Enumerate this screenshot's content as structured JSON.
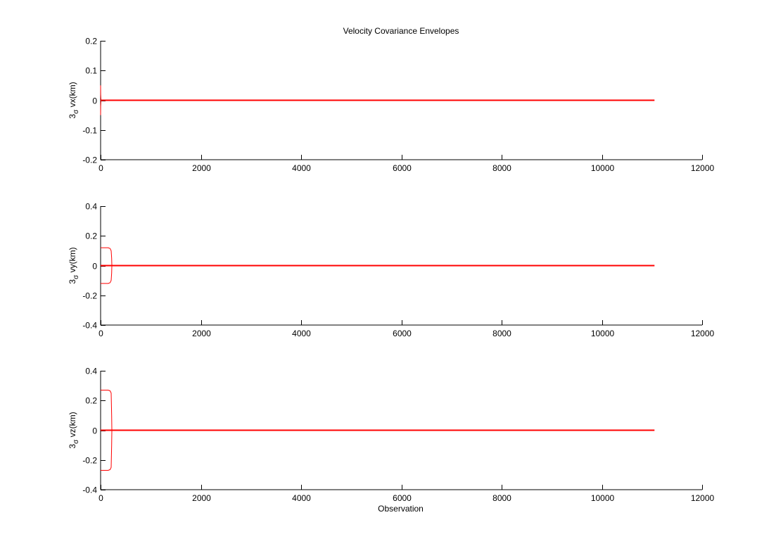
{
  "figure": {
    "title": "Velocity Covariance Envelopes"
  },
  "colors": {
    "series": "#ff0000",
    "axes": "#000000",
    "background": "#ffffff"
  },
  "chart_data": [
    {
      "type": "line",
      "title": "Velocity Covariance Envelopes",
      "xlabel": "",
      "ylabel": "3σ vx(km)",
      "ylabel_parts": {
        "prefix": "3",
        "sub": "σ",
        "rest": " vx(km)"
      },
      "xlim": [
        0,
        12000
      ],
      "ylim": [
        -0.2,
        0.2
      ],
      "xticks": [
        0,
        2000,
        4000,
        6000,
        8000,
        10000,
        12000
      ],
      "xtick_labels": [
        "0",
        "2000",
        "4000",
        "6000",
        "8000",
        "10000",
        "12000"
      ],
      "yticks": [
        -0.2,
        -0.1,
        0,
        0.1,
        0.2
      ],
      "ytick_labels": [
        "-0.2",
        "-0.1",
        "0",
        "0.1",
        "0.2"
      ],
      "grid": false,
      "series": [
        {
          "x": [
            0,
            11050
          ],
          "y": [
            0,
            0
          ]
        },
        {
          "x": [
            0,
            2,
            5,
            10,
            25
          ],
          "y": [
            0.05,
            0.02,
            0.005,
            0.001,
            0
          ]
        },
        {
          "x": [
            0,
            2,
            5,
            10,
            25
          ],
          "y": [
            -0.05,
            -0.02,
            -0.005,
            -0.001,
            0
          ]
        }
      ]
    },
    {
      "type": "line",
      "xlabel": "",
      "ylabel": "3σ vy(km)",
      "ylabel_parts": {
        "prefix": "3",
        "sub": "σ",
        "rest": " vy(km)"
      },
      "xlim": [
        0,
        12000
      ],
      "ylim": [
        -0.4,
        0.4
      ],
      "xticks": [
        0,
        2000,
        4000,
        6000,
        8000,
        10000,
        12000
      ],
      "xtick_labels": [
        "0",
        "2000",
        "4000",
        "6000",
        "8000",
        "10000",
        "12000"
      ],
      "yticks": [
        -0.4,
        -0.2,
        0,
        0.2,
        0.4
      ],
      "ytick_labels": [
        "-0.4",
        "-0.2",
        "0",
        "0.2",
        "0.4"
      ],
      "grid": false,
      "series": [
        {
          "x": [
            0,
            11050
          ],
          "y": [
            0,
            0
          ]
        },
        {
          "x": [
            0,
            150,
            190,
            210,
            220,
            225
          ],
          "y": [
            0.12,
            0.12,
            0.115,
            0.1,
            0.05,
            0
          ]
        },
        {
          "x": [
            0,
            150,
            190,
            210,
            220,
            225
          ],
          "y": [
            -0.12,
            -0.12,
            -0.115,
            -0.1,
            -0.05,
            0
          ]
        }
      ]
    },
    {
      "type": "line",
      "xlabel": "Observation",
      "ylabel": "3σ vz(km)",
      "ylabel_parts": {
        "prefix": "3",
        "sub": "σ",
        "rest": " vz(km)"
      },
      "xlim": [
        0,
        12000
      ],
      "ylim": [
        -0.4,
        0.4
      ],
      "xticks": [
        0,
        2000,
        4000,
        6000,
        8000,
        10000,
        12000
      ],
      "xtick_labels": [
        "0",
        "2000",
        "4000",
        "6000",
        "8000",
        "10000",
        "12000"
      ],
      "yticks": [
        -0.4,
        -0.2,
        0,
        0.2,
        0.4
      ],
      "ytick_labels": [
        "-0.4",
        "-0.2",
        "0",
        "0.2",
        "0.4"
      ],
      "grid": false,
      "series": [
        {
          "x": [
            0,
            11050
          ],
          "y": [
            0,
            0
          ]
        },
        {
          "x": [
            0,
            150,
            190,
            210,
            220,
            225
          ],
          "y": [
            0.27,
            0.27,
            0.265,
            0.25,
            0.1,
            0
          ]
        },
        {
          "x": [
            0,
            150,
            190,
            210,
            220,
            225
          ],
          "y": [
            -0.27,
            -0.27,
            -0.265,
            -0.25,
            -0.1,
            0
          ]
        }
      ]
    }
  ]
}
